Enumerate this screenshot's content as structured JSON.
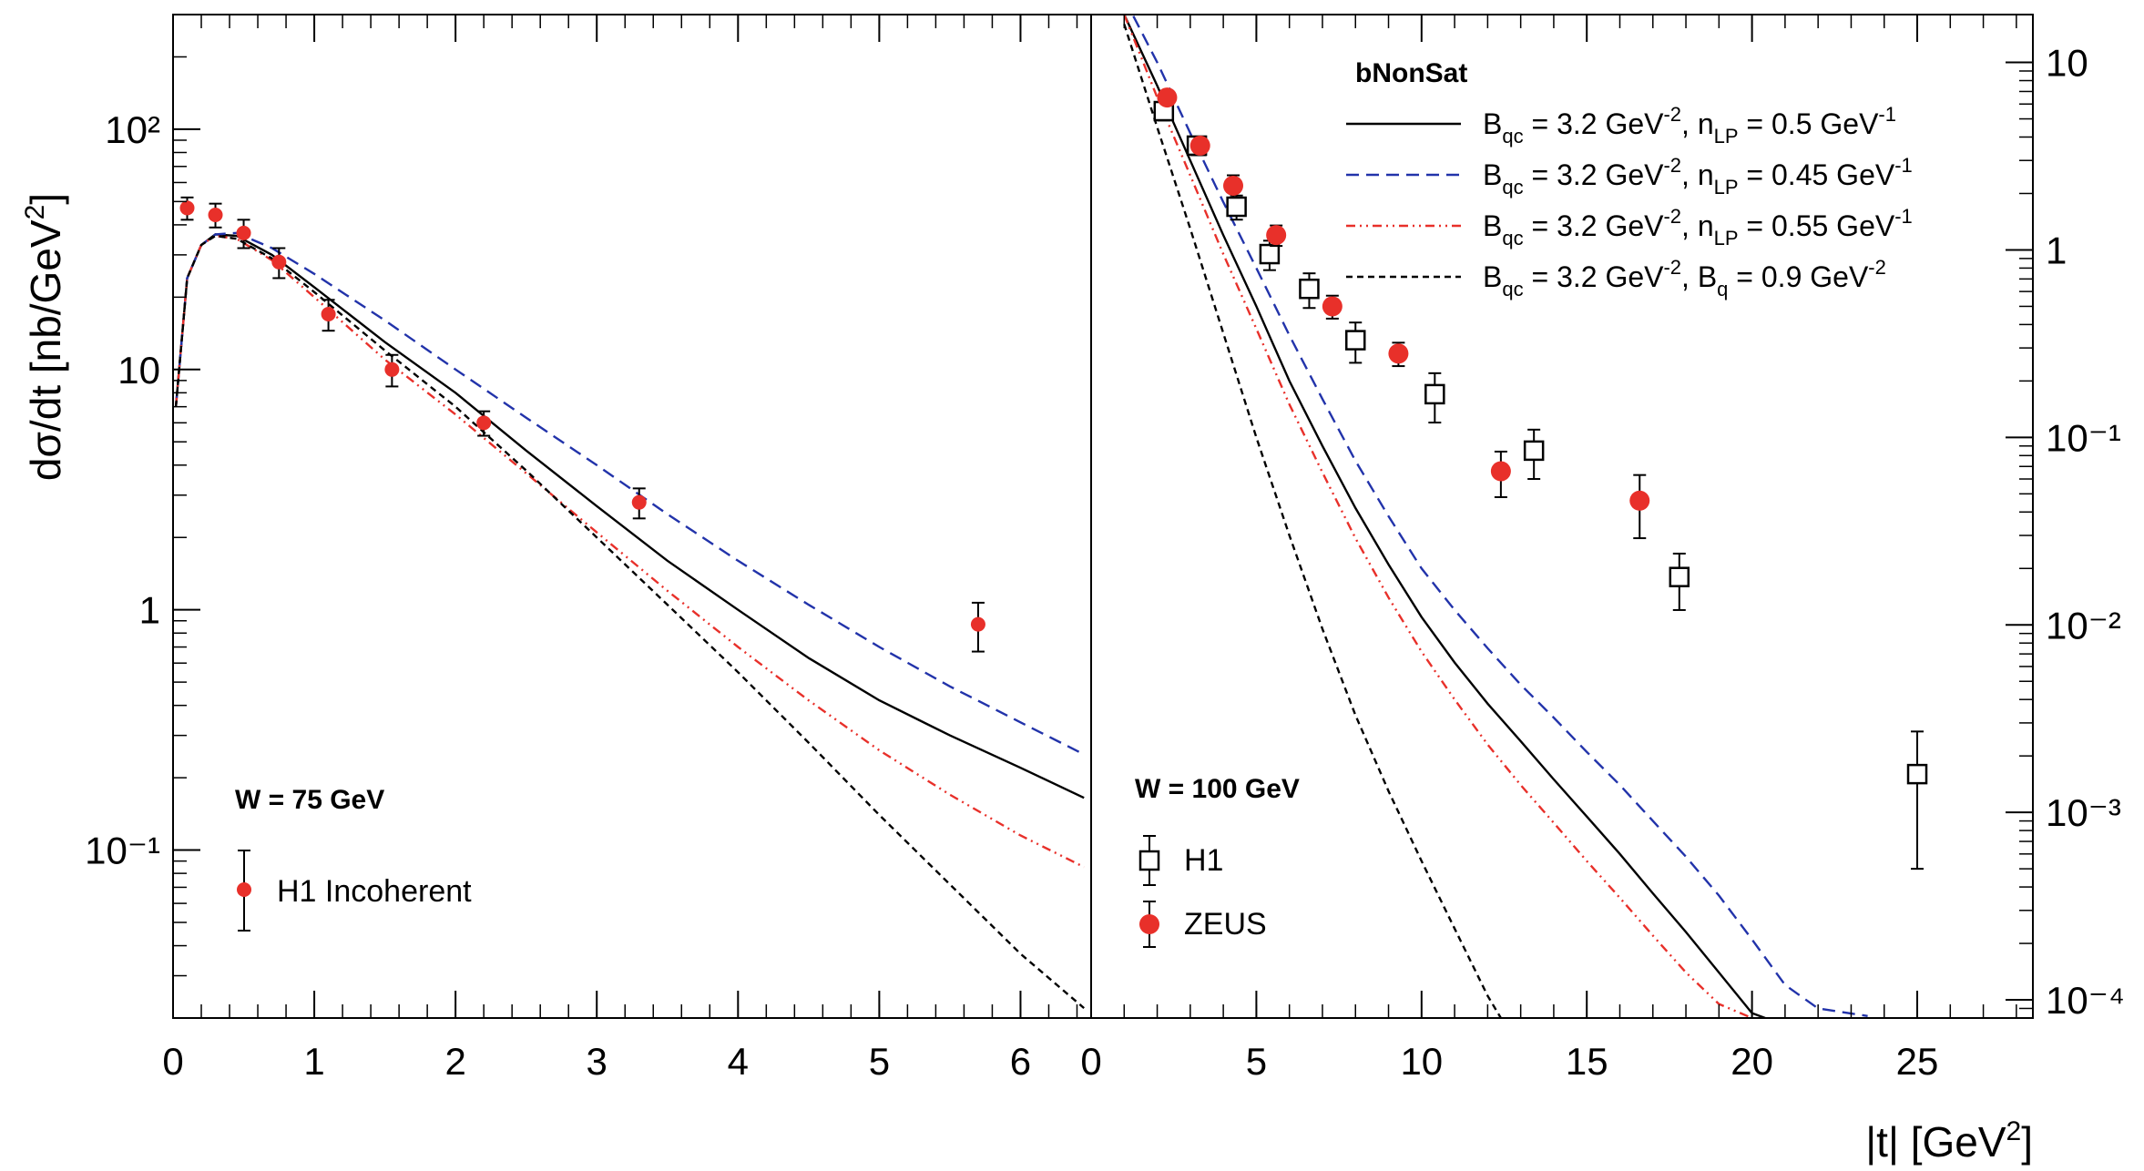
{
  "chart_data": [
    {
      "type": "scatter",
      "panel": "left",
      "title": "W = 75 GeV",
      "xlabel": "|t| [GeV²]",
      "ylabel": "dσ/dt  [nb/GeV²]",
      "yscale": "log",
      "xlim": [
        0,
        6.5
      ],
      "ylim": [
        0.02,
        300
      ],
      "x_ticks": [
        "0",
        "1",
        "2",
        "3",
        "4",
        "5",
        "6"
      ],
      "y_ticks": [
        "10⁻¹",
        "1",
        "10",
        "10²"
      ],
      "series": [
        {
          "name": "H1 Incoherent",
          "marker": "filled-circle",
          "color": "#e8302a",
          "x": [
            0.1,
            0.3,
            0.5,
            0.75,
            1.1,
            1.55,
            2.2,
            3.3,
            5.7
          ],
          "y": [
            47,
            44,
            37,
            28,
            17,
            10,
            6,
            2.8,
            0.87
          ],
          "y_err_low": [
            5,
            5,
            5,
            4,
            2.5,
            1.5,
            0.7,
            0.4,
            0.2
          ],
          "y_err_high": [
            5,
            5,
            5,
            4,
            2.5,
            1.5,
            0.7,
            0.4,
            0.2
          ]
        }
      ],
      "curves": [
        {
          "name": "nLP 0.5",
          "style": "solid",
          "color": "#000000",
          "x": [
            0.02,
            0.1,
            0.2,
            0.3,
            0.45,
            0.7,
            1,
            1.5,
            2,
            2.5,
            3,
            3.5,
            4,
            4.5,
            5,
            5.5,
            6,
            6.45
          ],
          "y": [
            7,
            24,
            33,
            36.5,
            36,
            30,
            22,
            13,
            8,
            4.6,
            2.7,
            1.6,
            1.0,
            0.63,
            0.42,
            0.3,
            0.22,
            0.165
          ]
        },
        {
          "name": "nLP 0.45",
          "style": "dashed",
          "color": "#2233aa",
          "x": [
            0.02,
            0.1,
            0.2,
            0.3,
            0.45,
            0.7,
            1,
            1.5,
            2,
            2.5,
            3,
            3.5,
            4,
            4.5,
            5,
            5.5,
            6,
            6.45
          ],
          "y": [
            7,
            24,
            33,
            36.5,
            37,
            32,
            25,
            16,
            10,
            6.3,
            4.0,
            2.5,
            1.6,
            1.05,
            0.7,
            0.48,
            0.34,
            0.25
          ]
        },
        {
          "name": "nLP 0.55",
          "style": "dashdot",
          "color": "#e8302a",
          "x": [
            0.02,
            0.1,
            0.2,
            0.3,
            0.45,
            0.7,
            1,
            1.5,
            2,
            2.5,
            3,
            3.5,
            4,
            4.5,
            5,
            5.5,
            6,
            6.45
          ],
          "y": [
            7,
            24,
            33,
            36,
            35,
            28.5,
            20,
            11,
            6.5,
            3.7,
            2.1,
            1.2,
            0.7,
            0.42,
            0.26,
            0.17,
            0.115,
            0.085
          ]
        },
        {
          "name": "Bq 0.9",
          "style": "dotted",
          "color": "#000000",
          "x": [
            0.02,
            0.1,
            0.2,
            0.3,
            0.45,
            0.7,
            1,
            1.5,
            2,
            2.5,
            3,
            3.5,
            4,
            4.5,
            5,
            5.5,
            6,
            6.45
          ],
          "y": [
            7,
            24,
            33,
            36,
            35,
            29,
            21,
            12,
            7,
            3.8,
            2.0,
            1.05,
            0.55,
            0.28,
            0.14,
            0.072,
            0.037,
            0.022
          ]
        }
      ]
    },
    {
      "type": "scatter",
      "panel": "right",
      "title": "W = 100 GeV",
      "xlabel": "|t| [GeV²]",
      "ylabel": "",
      "yscale": "log",
      "xlim": [
        0,
        28.5
      ],
      "ylim": [
        8e-05,
        18
      ],
      "x_ticks": [
        "0",
        "5",
        "10",
        "15",
        "20",
        "25"
      ],
      "y_ticks": [
        "10⁻⁴",
        "10⁻³",
        "10⁻²",
        "10⁻¹",
        "1",
        "10"
      ],
      "series": [
        {
          "name": "H1",
          "marker": "open-square",
          "color": "#000000",
          "x": [
            2.2,
            3.2,
            4.4,
            5.4,
            6.6,
            8.0,
            10.4,
            13.4,
            17.8,
            25.0
          ],
          "y": [
            5.5,
            3.6,
            1.7,
            0.95,
            0.62,
            0.33,
            0.17,
            0.085,
            0.018,
            0.0016
          ],
          "y_err_low": [
            0.6,
            0.4,
            0.25,
            0.17,
            0.13,
            0.08,
            0.05,
            0.025,
            0.006,
            0.0011
          ],
          "y_err_high": [
            0.6,
            0.4,
            0.25,
            0.17,
            0.13,
            0.08,
            0.05,
            0.025,
            0.006,
            0.0011
          ]
        },
        {
          "name": "ZEUS",
          "marker": "filled-circle",
          "color": "#e8302a",
          "x": [
            2.3,
            3.3,
            4.3,
            5.6,
            7.3,
            9.3,
            12.4,
            16.6
          ],
          "y": [
            6.5,
            3.6,
            2.2,
            1.2,
            0.5,
            0.28,
            0.066,
            0.046
          ],
          "y_err_low": [
            0.5,
            0.4,
            0.3,
            0.15,
            0.07,
            0.04,
            0.018,
            0.017
          ],
          "y_err_high": [
            0.5,
            0.4,
            0.3,
            0.15,
            0.07,
            0.04,
            0.018,
            0.017
          ]
        }
      ],
      "curves": [
        {
          "name": "nLP 0.5",
          "style": "solid",
          "color": "#000000",
          "x": [
            1,
            2,
            3,
            4,
            5,
            6,
            7,
            8,
            9,
            10,
            11,
            12,
            13,
            14,
            15,
            16,
            17,
            18,
            19,
            20,
            20.4
          ],
          "y": [
            18,
            7.5,
            3.0,
            1.2,
            0.5,
            0.2,
            0.09,
            0.042,
            0.021,
            0.011,
            0.0063,
            0.0038,
            0.0024,
            0.0015,
            0.00095,
            0.0006,
            0.00037,
            0.00023,
            0.00014,
            8.5e-05,
            8e-05
          ]
        },
        {
          "name": "nLP 0.45",
          "style": "dashed",
          "color": "#2233aa",
          "x": [
            1,
            2,
            3,
            4,
            5,
            6,
            7,
            8,
            9,
            10,
            11,
            12,
            13,
            14,
            15,
            16,
            17,
            18,
            19,
            20,
            21,
            22,
            23.5
          ],
          "y": [
            22,
            10,
            4.2,
            1.8,
            0.8,
            0.35,
            0.16,
            0.075,
            0.038,
            0.02,
            0.012,
            0.0075,
            0.0048,
            0.0032,
            0.0021,
            0.0014,
            0.0009,
            0.00058,
            0.00036,
            0.00021,
            0.00012,
            9e-05,
            8.2e-05
          ]
        },
        {
          "name": "nLP 0.55",
          "style": "dashdot",
          "color": "#e8302a",
          "x": [
            1,
            2,
            3,
            4,
            5,
            6,
            7,
            8,
            9,
            10,
            11,
            12,
            13,
            14,
            15,
            16,
            17,
            18,
            19,
            20
          ],
          "y": [
            18,
            6.5,
            2.5,
            0.95,
            0.38,
            0.15,
            0.065,
            0.029,
            0.014,
            0.0072,
            0.004,
            0.0023,
            0.0014,
            0.00088,
            0.00055,
            0.00035,
            0.00022,
            0.00014,
            9.5e-05,
            8e-05
          ]
        },
        {
          "name": "Bq 0.9",
          "style": "dotted",
          "color": "#000000",
          "x": [
            1,
            2,
            3,
            4,
            5,
            6,
            7,
            8,
            9,
            10,
            11,
            12,
            12.4
          ],
          "y": [
            16,
            4.5,
            1.3,
            0.36,
            0.1,
            0.03,
            0.0095,
            0.0033,
            0.0013,
            0.00055,
            0.00024,
            0.000105,
            8e-05
          ]
        }
      ],
      "legend": {
        "title": "bNonSat",
        "position": "top-right",
        "entries": [
          {
            "style": "solid",
            "color": "#000000",
            "p1": "B",
            "s1": "qc",
            "m1": " = 3.2 GeV",
            "e1": "-2",
            "m2": ", n",
            "s2": "LP",
            "m3": " = 0.5 GeV",
            "e2": "-1"
          },
          {
            "style": "dashed",
            "color": "#2233aa",
            "p1": "B",
            "s1": "qc",
            "m1": " = 3.2 GeV",
            "e1": "-2",
            "m2": ", n",
            "s2": "LP",
            "m3": " = 0.45 GeV",
            "e2": "-1"
          },
          {
            "style": "dashdot",
            "color": "#e8302a",
            "p1": "B",
            "s1": "qc",
            "m1": " = 3.2 GeV",
            "e1": "-2",
            "m2": ", n",
            "s2": "LP",
            "m3": " = 0.55 GeV",
            "e2": "-1"
          },
          {
            "style": "dotted",
            "color": "#000000",
            "p1": "B",
            "s1": "qc",
            "m1": " = 3.2 GeV",
            "e1": "-2",
            "m2": ", B",
            "s2": "q",
            "m3": " = 0.9 GeV",
            "e2": "-2"
          }
        ]
      }
    }
  ],
  "labels": {
    "left_panel_title": "W = 75 GeV",
    "left_legend_h1": "H1  Incoherent",
    "right_panel_title": "W = 100 GeV",
    "right_legend_h1": "H1",
    "right_legend_zeus": "ZEUS",
    "legend_title": "bNonSat",
    "y_axis": {
      "prefix": "dσ/dt  [nb/GeV",
      "sup": "2",
      "suffix": "]"
    },
    "x_axis": {
      "prefix": "|t| [GeV",
      "sup": "2",
      "suffix": "]"
    }
  },
  "colors": {
    "red": "#e8302a",
    "blue": "#2233aa",
    "black": "#000000"
  }
}
